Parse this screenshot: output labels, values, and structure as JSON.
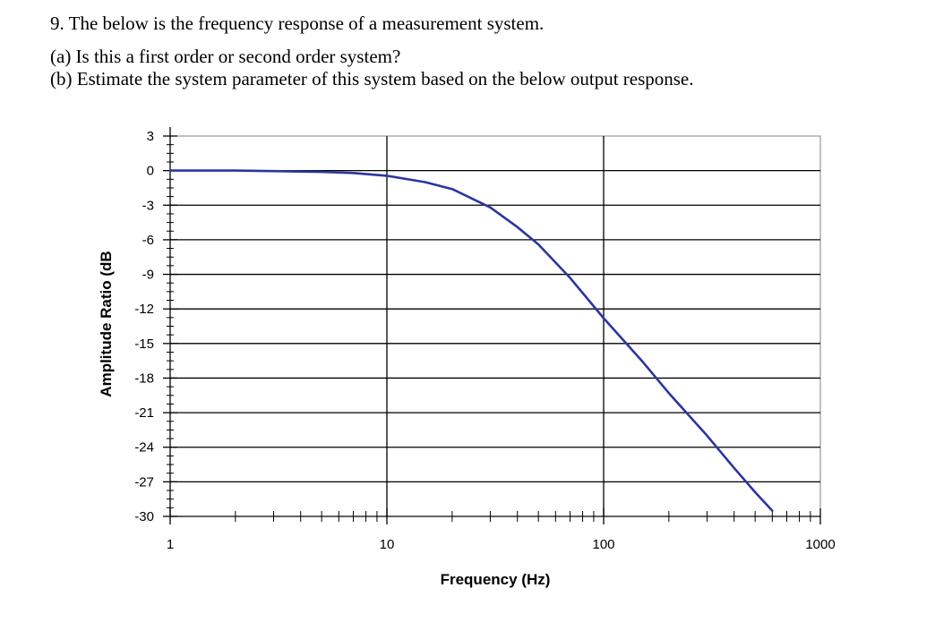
{
  "question": {
    "title": "9. The below is the frequency response of a measurement system.",
    "part_a": "(a) Is this a first order or second order system?",
    "part_b": "(b) Estimate the system parameter of this system based on the below output response."
  },
  "colors": {
    "curve": "#2b35a0",
    "grid": "#000000",
    "plot_border": "#808080"
  },
  "chart_data": {
    "type": "line",
    "title": "",
    "xlabel": "Frequency (Hz)",
    "ylabel": "Amplitude Ratio (dB",
    "x_scale": "log",
    "xlim": [
      1,
      1000
    ],
    "ylim": [
      -30,
      3
    ],
    "x_ticks": [
      1,
      10,
      100,
      1000
    ],
    "x_tick_labels": [
      "1",
      "10",
      "100",
      "1000"
    ],
    "y_ticks": [
      3,
      0,
      -3,
      -6,
      -9,
      -12,
      -15,
      -18,
      -21,
      -24,
      -27,
      -30
    ],
    "y_tick_labels": [
      "3",
      "0",
      "-3",
      "-6",
      "-9",
      "-12",
      "-15",
      "-18",
      "-21",
      "-24",
      "-27",
      "-30"
    ],
    "grid": true,
    "series": [
      {
        "x": [
          1,
          2,
          3,
          5,
          7,
          10,
          15,
          20,
          30,
          40,
          50,
          70,
          100,
          150,
          200,
          300,
          400,
          500,
          600
        ],
        "y": [
          0,
          0,
          -0.04,
          -0.11,
          -0.21,
          -0.45,
          -1.0,
          -1.6,
          -3.2,
          -4.9,
          -6.4,
          -9.3,
          -12.8,
          -16.5,
          -19.3,
          -23.0,
          -25.8,
          -27.9,
          -29.5
        ]
      }
    ]
  }
}
